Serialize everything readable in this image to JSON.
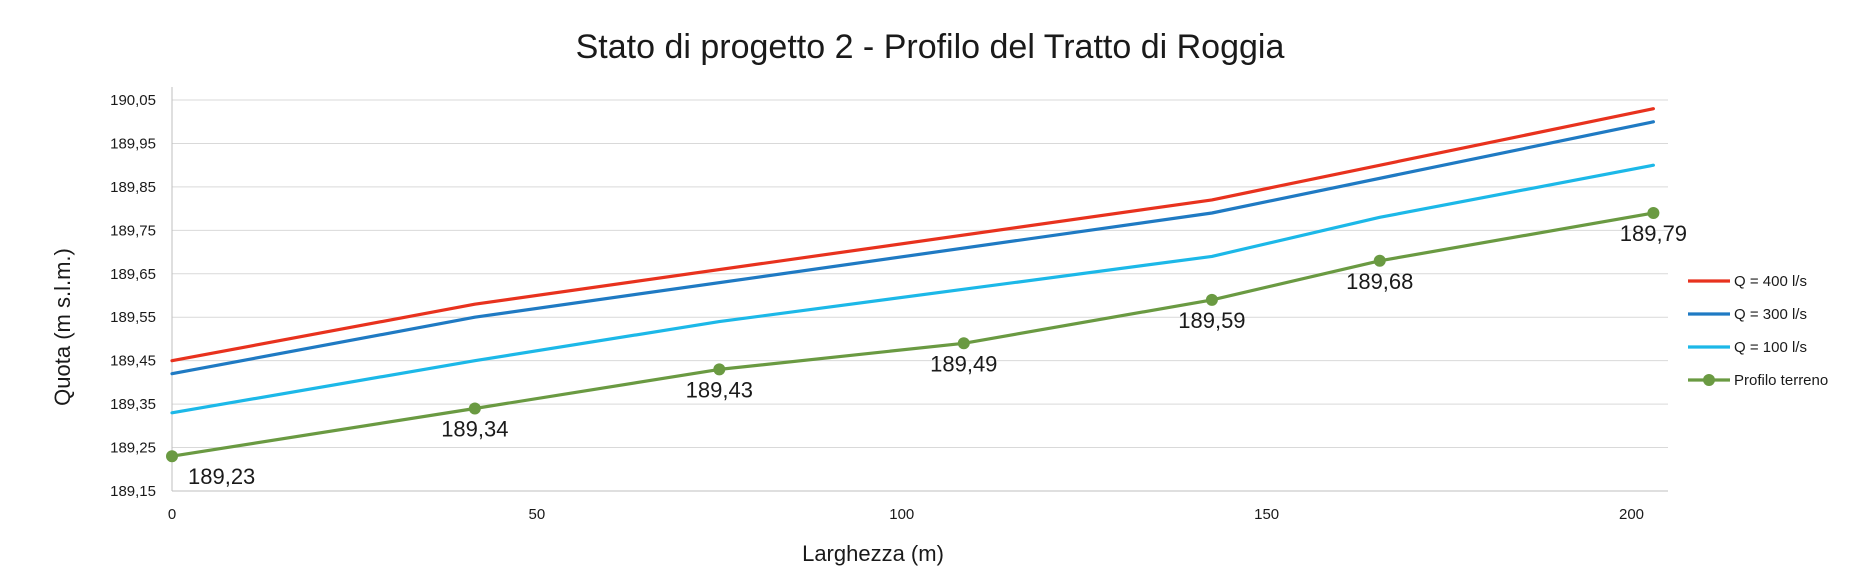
{
  "chart_data": {
    "type": "line",
    "title": "Stato di progetto 2 - Profilo del Tratto di Roggia",
    "xlabel": "Larghezza (m)",
    "ylabel": "Quota (m s.l.m.)",
    "xlim": [
      0,
      205
    ],
    "ylim": [
      189.15,
      190.08
    ],
    "x_ticks": [
      0,
      50,
      100,
      150,
      200
    ],
    "x_tick_labels": [
      "0",
      "50",
      "100",
      "150",
      "200"
    ],
    "y_ticks": [
      189.15,
      189.25,
      189.35,
      189.45,
      189.55,
      189.65,
      189.75,
      189.85,
      189.95,
      190.05
    ],
    "y_tick_labels": [
      "189,15",
      "189,25",
      "189,35",
      "189,45",
      "189,55",
      "189,65",
      "189,75",
      "189,85",
      "189,95",
      "190,05"
    ],
    "grid": true,
    "legend_position": "right",
    "series": [
      {
        "name": "Q = 400 l/s",
        "color": "#e8321e",
        "marker": false,
        "x": [
          0,
          41.5,
          142.5,
          203
        ],
        "y": [
          189.45,
          189.58,
          189.82,
          190.03
        ]
      },
      {
        "name": "Q = 300 l/s",
        "color": "#1f7ac3",
        "marker": false,
        "x": [
          0,
          41.5,
          142.5,
          203
        ],
        "y": [
          189.42,
          189.55,
          189.79,
          190.0
        ]
      },
      {
        "name": "Q = 100 l/s",
        "color": "#1cb8e8",
        "marker": false,
        "x": [
          0,
          41.5,
          75,
          142.5,
          165.5,
          203
        ],
        "y": [
          189.33,
          189.45,
          189.54,
          189.69,
          189.78,
          189.9
        ]
      },
      {
        "name": "Profilo terreno",
        "color": "#6a9a42",
        "marker": true,
        "x": [
          0,
          41.5,
          75,
          108.5,
          142.5,
          165.5,
          203
        ],
        "y": [
          189.23,
          189.34,
          189.43,
          189.49,
          189.59,
          189.68,
          189.79
        ],
        "labels": [
          "189,23",
          "189,34",
          "189,43",
          "189,49",
          "189,59",
          "189,68",
          "189,79"
        ]
      }
    ]
  }
}
